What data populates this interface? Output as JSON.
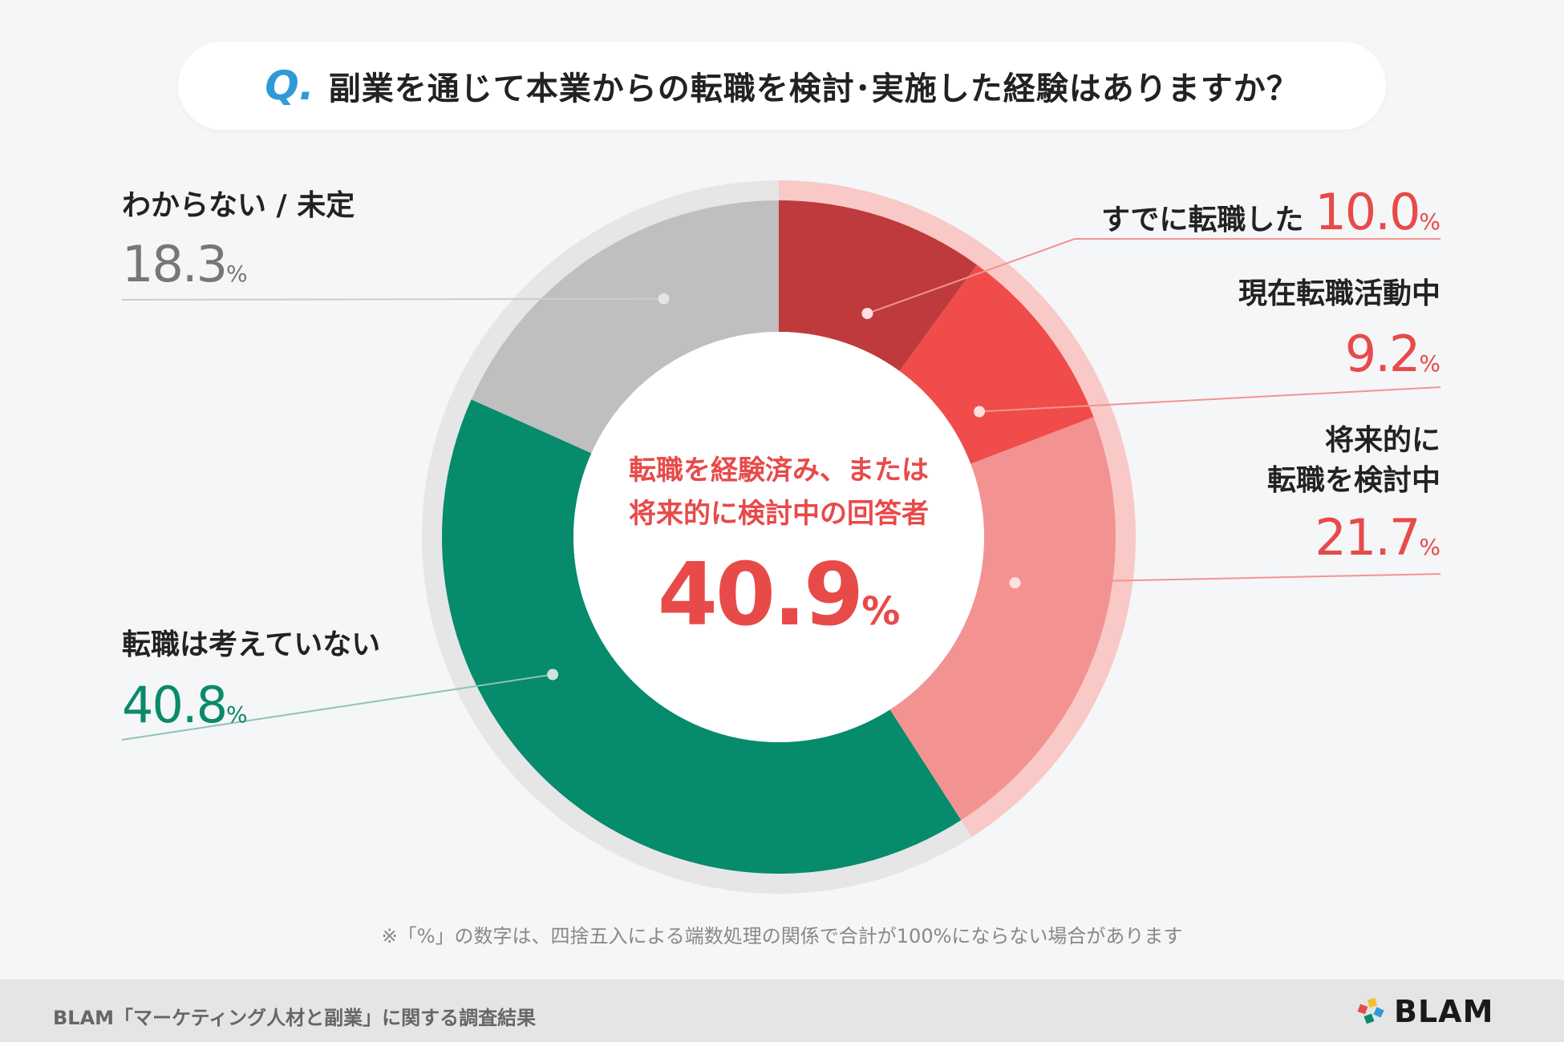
{
  "question": {
    "mark": "Q.",
    "text": "副業を通じて本業からの転職を検討･実施した経験はありますか？"
  },
  "center": {
    "label_line1": "転職を経験済み、または",
    "label_line2": "将来的に検討中の回答者",
    "value": "40.9",
    "unit": "%"
  },
  "chart_data": {
    "type": "pie",
    "title": "副業を通じて本業からの転職を検討･実施した経験はありますか？",
    "unit": "%",
    "slices": [
      {
        "label": "すでに転職した",
        "value": 10.0,
        "color": "#bf3a3c"
      },
      {
        "label": "現在転職活動中",
        "value": 9.2,
        "color": "#ef4c4b"
      },
      {
        "label": "将来的に転職を検討中",
        "value": 21.7,
        "color": "#f29392"
      },
      {
        "label": "転職は考えていない",
        "value": 40.8,
        "color": "#068b6c"
      },
      {
        "label": "わからない / 未定",
        "value": 18.3,
        "color": "#bfbfbf"
      }
    ],
    "highlight_group": {
      "label": "転職を経験済み、または将来的に検討中の回答者",
      "value": 40.9,
      "color": "#e84a4a"
    }
  },
  "labels": {
    "already": {
      "name": "すでに転職した",
      "value": "10.0",
      "unit": "%"
    },
    "active": {
      "name": "現在転職活動中",
      "value": "9.2",
      "unit": "%"
    },
    "future_line1": "将来的に",
    "future_line2": "転職を検討中",
    "future": {
      "value": "21.7",
      "unit": "%"
    },
    "no": {
      "name": "転職は考えていない",
      "value": "40.8",
      "unit": "%"
    },
    "unknown": {
      "name": "わからない / 未定",
      "value": "18.3",
      "unit": "%"
    }
  },
  "note": "※「%」の数字は、四捨五入による端数処理の関係で合計が100%にならない場合があります",
  "footer": {
    "source": "BLAM「マーケティング人材と副業」に関する調査結果",
    "logo": "BLAM"
  }
}
